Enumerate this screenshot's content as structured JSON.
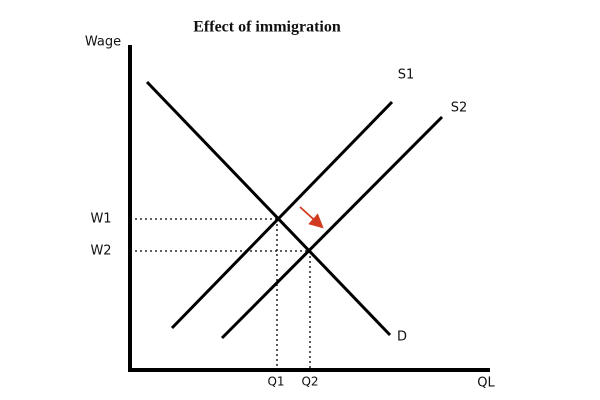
{
  "title": "Effect of immigration",
  "axes": {
    "y_label": "Wage",
    "x_label": "QL"
  },
  "curves": [
    {
      "label": "S1"
    },
    {
      "label": "S2"
    },
    {
      "label": "D"
    }
  ],
  "wage_levels": [
    "W1",
    "W2"
  ],
  "quantities": [
    "Q1",
    "Q2"
  ]
}
